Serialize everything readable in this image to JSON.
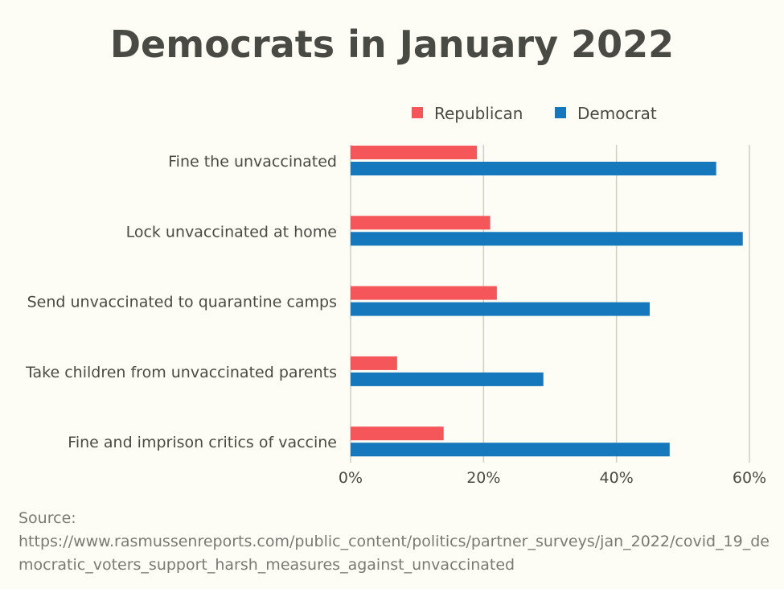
{
  "chart_data": {
    "type": "bar",
    "orientation": "horizontal",
    "title": "Democrats in January 2022",
    "categories": [
      "Fine the unvaccinated",
      "Lock unvaccinated at home",
      "Send unvaccinated to quarantine camps",
      "Take children from unvaccinated parents",
      "Fine and imprison critics of vaccine"
    ],
    "series": [
      {
        "name": "Republican",
        "color": "#f5565a",
        "values": [
          19,
          21,
          22,
          7,
          14
        ]
      },
      {
        "name": "Democrat",
        "color": "#1578bd",
        "values": [
          55,
          59,
          45,
          29,
          48
        ]
      }
    ],
    "xlim": [
      0,
      60
    ],
    "xticks": [
      "0%",
      "20%",
      "40%",
      "60%"
    ],
    "grid": true,
    "legend": "top"
  },
  "source_label": "Source:",
  "source_url": "https://www.rasmussenreports.com/public_content/politics/partner_surveys/jan_2022/covid_19_democratic_voters_support_harsh_measures_against_unvaccinated"
}
